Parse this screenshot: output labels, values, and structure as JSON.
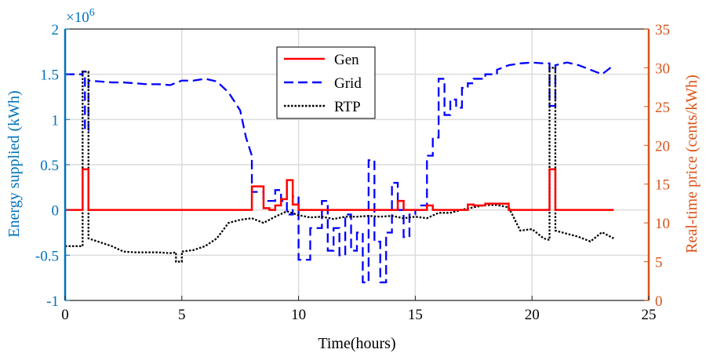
{
  "chart_data": {
    "type": "line",
    "grid": true,
    "legend_position": "top-center",
    "xlabel": "Time(hours)",
    "ylabel_left": "Energy supplied (kWh)",
    "ylabel_right": "Real-time price (cents/kWh)",
    "left_multiplier": "×10",
    "left_multiplier_exp": "6",
    "xlim": [
      0,
      25
    ],
    "ylim_left": [
      -1,
      2
    ],
    "ylim_right": [
      0,
      35
    ],
    "xticks": [
      0,
      5,
      10,
      15,
      20,
      25
    ],
    "yticks_left": [
      -1,
      -0.5,
      0,
      0.5,
      1,
      1.5,
      2
    ],
    "yticks_right": [
      0,
      5,
      10,
      15,
      20,
      25,
      30,
      35
    ],
    "colors": {
      "left_axis": "#0072BD",
      "right_axis": "#D95319",
      "gen": "#FF0000",
      "grid": "#0000FF",
      "rtp": "#000000",
      "gridlines": "#DCDCDC"
    },
    "series": [
      {
        "name": "Gen",
        "axis": "left",
        "style": "solid",
        "x": [
          0,
          0.75,
          0.75,
          1.0,
          1.0,
          8.0,
          8.0,
          8.5,
          8.5,
          8.75,
          8.75,
          9.0,
          9.0,
          9.25,
          9.25,
          9.5,
          9.5,
          9.75,
          9.75,
          10.0,
          10.0,
          14.25,
          14.25,
          14.5,
          14.5,
          15.5,
          15.5,
          15.75,
          15.75,
          17.25,
          17.25,
          17.5,
          17.5,
          18.0,
          18.0,
          19.0,
          19.0,
          20.75,
          20.75,
          21.0,
          21.0,
          23.5
        ],
        "y": [
          0,
          0,
          0.45,
          0.45,
          0,
          0,
          0.26,
          0.26,
          0.02,
          0.02,
          0,
          0,
          0.05,
          0.05,
          0.12,
          0.12,
          0.33,
          0.33,
          0.06,
          0.06,
          0,
          0,
          0.1,
          0.1,
          0,
          0,
          0.05,
          0.05,
          0,
          0,
          0.06,
          0.06,
          0.05,
          0.05,
          0.07,
          0.07,
          0,
          0,
          0.45,
          0.45,
          0,
          0
        ]
      },
      {
        "name": "Grid",
        "axis": "left",
        "style": "dashed",
        "x": [
          0,
          0.75,
          0.75,
          0.85,
          0.85,
          1.0,
          1.0,
          1.5,
          2.0,
          2.5,
          3.0,
          3.5,
          4.0,
          4.5,
          5.0,
          5.5,
          6.0,
          6.5,
          7.0,
          7.5,
          7.75,
          8.0,
          8.0,
          8.5,
          8.5,
          9.0,
          9.0,
          9.25,
          9.25,
          9.5,
          9.5,
          9.75,
          9.75,
          10.0,
          10.0,
          10.5,
          10.5,
          11.0,
          11.0,
          11.25,
          11.25,
          11.5,
          11.5,
          11.75,
          11.75,
          12.0,
          12.0,
          12.25,
          12.25,
          12.5,
          12.5,
          12.75,
          12.75,
          13.0,
          13.0,
          13.25,
          13.25,
          13.5,
          13.5,
          13.75,
          13.75,
          14.0,
          14.0,
          14.25,
          14.25,
          14.5,
          14.5,
          14.75,
          14.75,
          15.0,
          15.0,
          15.25,
          15.25,
          15.5,
          15.5,
          15.75,
          15.75,
          16.0,
          16.0,
          16.25,
          16.25,
          16.5,
          16.5,
          16.75,
          16.75,
          17.0,
          17.0,
          17.25,
          17.25,
          17.5,
          17.5,
          18.0,
          18.0,
          18.5,
          18.5,
          19.0,
          19.5,
          20.0,
          20.5,
          20.75,
          20.75,
          21.0,
          21.0,
          21.5,
          22.0,
          22.5,
          23.0,
          23.5
        ],
        "y": [
          1.5,
          1.5,
          1.53,
          1.53,
          0.88,
          0.88,
          1.43,
          1.42,
          1.41,
          1.41,
          1.4,
          1.39,
          1.39,
          1.38,
          1.43,
          1.43,
          1.45,
          1.42,
          1.3,
          1.1,
          0.8,
          0.6,
          0.2,
          0.2,
          0.1,
          0.1,
          0.22,
          0.22,
          0.1,
          0.1,
          -0.05,
          -0.05,
          0.15,
          0.15,
          -0.55,
          -0.55,
          -0.2,
          -0.2,
          0.1,
          0.1,
          -0.45,
          -0.45,
          -0.2,
          -0.2,
          -0.5,
          -0.5,
          -0.05,
          -0.05,
          -0.45,
          -0.45,
          -0.25,
          -0.25,
          -0.8,
          -0.8,
          0.55,
          0.55,
          -0.35,
          -0.35,
          -0.8,
          -0.8,
          -0.25,
          -0.25,
          0.3,
          0.3,
          0.0,
          0.0,
          -0.3,
          -0.3,
          -0.05,
          -0.05,
          0.0,
          0.0,
          0.05,
          0.05,
          0.6,
          0.6,
          0.8,
          0.8,
          1.45,
          1.45,
          1.05,
          1.05,
          1.22,
          1.22,
          1.13,
          1.13,
          1.35,
          1.35,
          1.4,
          1.4,
          1.45,
          1.45,
          1.5,
          1.5,
          1.55,
          1.6,
          1.62,
          1.63,
          1.62,
          1.62,
          1.15,
          1.15,
          1.6,
          1.63,
          1.6,
          1.55,
          1.5,
          1.6
        ]
      },
      {
        "name": "RTP",
        "axis": "right",
        "style": "dotted",
        "x": [
          0,
          0.75,
          0.75,
          1.0,
          1.0,
          1.5,
          2.0,
          2.5,
          3.0,
          3.5,
          4.0,
          4.5,
          4.75,
          4.75,
          5.0,
          5.0,
          5.5,
          6.0,
          6.5,
          7.0,
          7.5,
          8.0,
          8.5,
          9.0,
          9.5,
          10.0,
          10.5,
          11.0,
          11.5,
          12.0,
          12.5,
          13.0,
          13.5,
          14.0,
          14.5,
          15.0,
          15.5,
          16.0,
          16.5,
          17.0,
          17.5,
          18.0,
          18.5,
          19.0,
          19.5,
          20.0,
          20.5,
          20.75,
          20.75,
          21.0,
          21.0,
          21.5,
          22.0,
          22.5,
          23.0,
          23.5
        ],
        "y": [
          7,
          7,
          29.5,
          29.5,
          8.0,
          7.5,
          7.0,
          6.3,
          6.2,
          6.2,
          6.2,
          6.1,
          6.2,
          5.0,
          5.0,
          6.3,
          6.5,
          7.0,
          8.0,
          10.0,
          10.4,
          10.6,
          10.0,
          10.8,
          11.5,
          11.0,
          10.7,
          10.8,
          10.5,
          10.8,
          10.8,
          10.9,
          10.8,
          10.9,
          10.6,
          10.8,
          10.6,
          11.3,
          11.3,
          11.7,
          12.0,
          12.3,
          12.3,
          12.0,
          9.0,
          9.2,
          8.0,
          7.8,
          30.0,
          30.0,
          9.0,
          8.6,
          8.2,
          7.6,
          8.8,
          8.0
        ]
      }
    ]
  }
}
